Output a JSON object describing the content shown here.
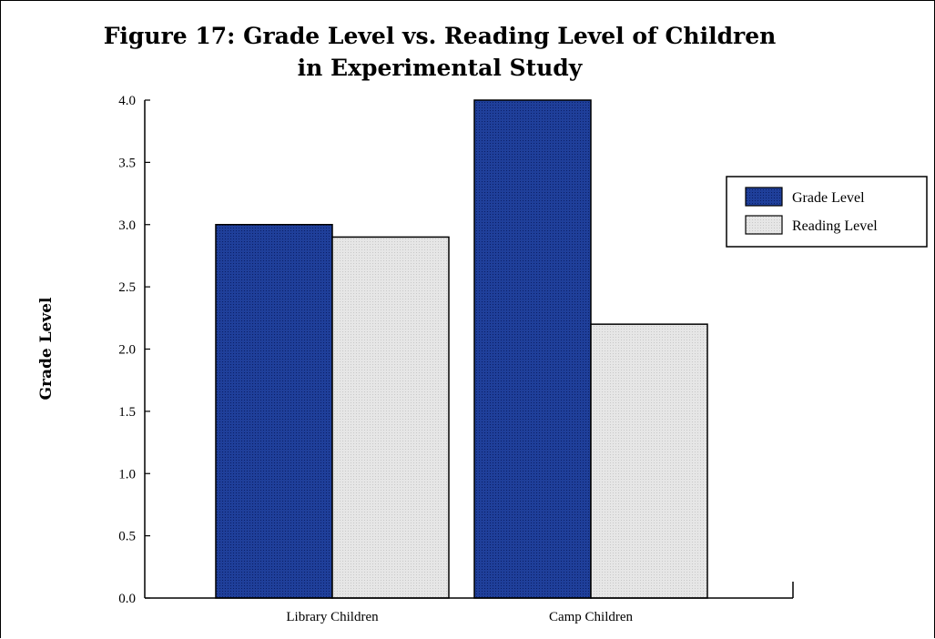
{
  "chart_data": {
    "type": "bar",
    "title": "Figure 17: Grade Level vs. Reading Level of Children",
    "subtitle": "in Experimental Study",
    "xlabel": "",
    "ylabel": "Grade Level",
    "categories": [
      "Library Children",
      "Camp Children"
    ],
    "series": [
      {
        "name": "Grade Level",
        "values": [
          3.0,
          4.0
        ],
        "color": "#1f3f9a"
      },
      {
        "name": "Reading Level",
        "values": [
          2.9,
          2.2
        ],
        "color": "#e4e4e4"
      }
    ],
    "ylim": [
      0,
      4
    ],
    "yticks": [
      "0.0",
      "0.5",
      "1.0",
      "1.5",
      "2.0",
      "2.5",
      "3.0",
      "3.5",
      "4.0"
    ],
    "legend_position": "right",
    "grid": false
  }
}
